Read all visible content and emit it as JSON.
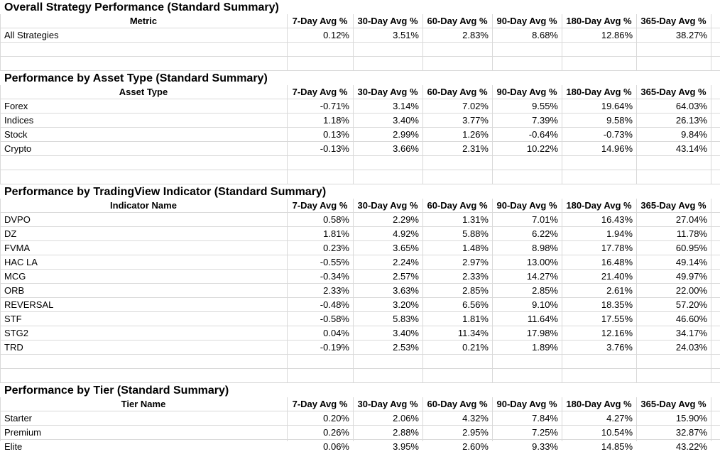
{
  "columns": [
    "7-Day Avg %",
    "30-Day Avg %",
    "60-Day Avg %",
    "90-Day Avg %",
    "180-Day Avg %",
    "365-Day Avg %"
  ],
  "sections": [
    {
      "title": "Overall Strategy Performance (Standard Summary)",
      "key_header": "Metric",
      "rows": [
        {
          "name": "All Strategies",
          "values": [
            "0.12%",
            "3.51%",
            "2.83%",
            "8.68%",
            "12.86%",
            "38.27%"
          ]
        }
      ]
    },
    {
      "title": "Performance by Asset Type (Standard Summary)",
      "key_header": "Asset Type",
      "rows": [
        {
          "name": "Forex",
          "values": [
            "-0.71%",
            "3.14%",
            "7.02%",
            "9.55%",
            "19.64%",
            "64.03%"
          ]
        },
        {
          "name": "Indices",
          "values": [
            "1.18%",
            "3.40%",
            "3.77%",
            "7.39%",
            "9.58%",
            "26.13%"
          ]
        },
        {
          "name": "Stock",
          "values": [
            "0.13%",
            "2.99%",
            "1.26%",
            "-0.64%",
            "-0.73%",
            "9.84%"
          ]
        },
        {
          "name": "Crypto",
          "values": [
            "-0.13%",
            "3.66%",
            "2.31%",
            "10.22%",
            "14.96%",
            "43.14%"
          ]
        }
      ]
    },
    {
      "title": "Performance by TradingView Indicator (Standard Summary)",
      "key_header": "Indicator Name",
      "rows": [
        {
          "name": "DVPO",
          "values": [
            "0.58%",
            "2.29%",
            "1.31%",
            "7.01%",
            "16.43%",
            "27.04%"
          ]
        },
        {
          "name": "DZ",
          "values": [
            "1.81%",
            "4.92%",
            "5.88%",
            "6.22%",
            "1.94%",
            "11.78%"
          ]
        },
        {
          "name": "FVMA",
          "values": [
            "0.23%",
            "3.65%",
            "1.48%",
            "8.98%",
            "17.78%",
            "60.95%"
          ]
        },
        {
          "name": "HAC LA",
          "values": [
            "-0.55%",
            "2.24%",
            "2.97%",
            "13.00%",
            "16.48%",
            "49.14%"
          ]
        },
        {
          "name": "MCG",
          "values": [
            "-0.34%",
            "2.57%",
            "2.33%",
            "14.27%",
            "21.40%",
            "49.97%"
          ]
        },
        {
          "name": "ORB",
          "values": [
            "2.33%",
            "3.63%",
            "2.85%",
            "2.85%",
            "2.61%",
            "22.00%"
          ]
        },
        {
          "name": "REVERSAL",
          "values": [
            "-0.48%",
            "3.20%",
            "6.56%",
            "9.10%",
            "18.35%",
            "57.20%"
          ]
        },
        {
          "name": "STF",
          "values": [
            "-0.58%",
            "5.83%",
            "1.81%",
            "11.64%",
            "17.55%",
            "46.60%"
          ]
        },
        {
          "name": "STG2",
          "values": [
            "0.04%",
            "3.40%",
            "11.34%",
            "17.98%",
            "12.16%",
            "34.17%"
          ]
        },
        {
          "name": "TRD",
          "values": [
            "-0.19%",
            "2.53%",
            "0.21%",
            "1.89%",
            "3.76%",
            "24.03%"
          ]
        }
      ]
    },
    {
      "title": "Performance by Tier (Standard Summary)",
      "key_header": "Tier Name",
      "rows": [
        {
          "name": "Starter",
          "values": [
            "0.20%",
            "2.06%",
            "4.32%",
            "7.84%",
            "4.27%",
            "15.90%"
          ]
        },
        {
          "name": "Premium",
          "values": [
            "0.26%",
            "2.88%",
            "2.95%",
            "7.25%",
            "10.54%",
            "32.87%"
          ]
        },
        {
          "name": "Elite",
          "values": [
            "0.06%",
            "3.95%",
            "2.60%",
            "9.33%",
            "14.85%",
            "43.22%"
          ]
        }
      ]
    }
  ]
}
